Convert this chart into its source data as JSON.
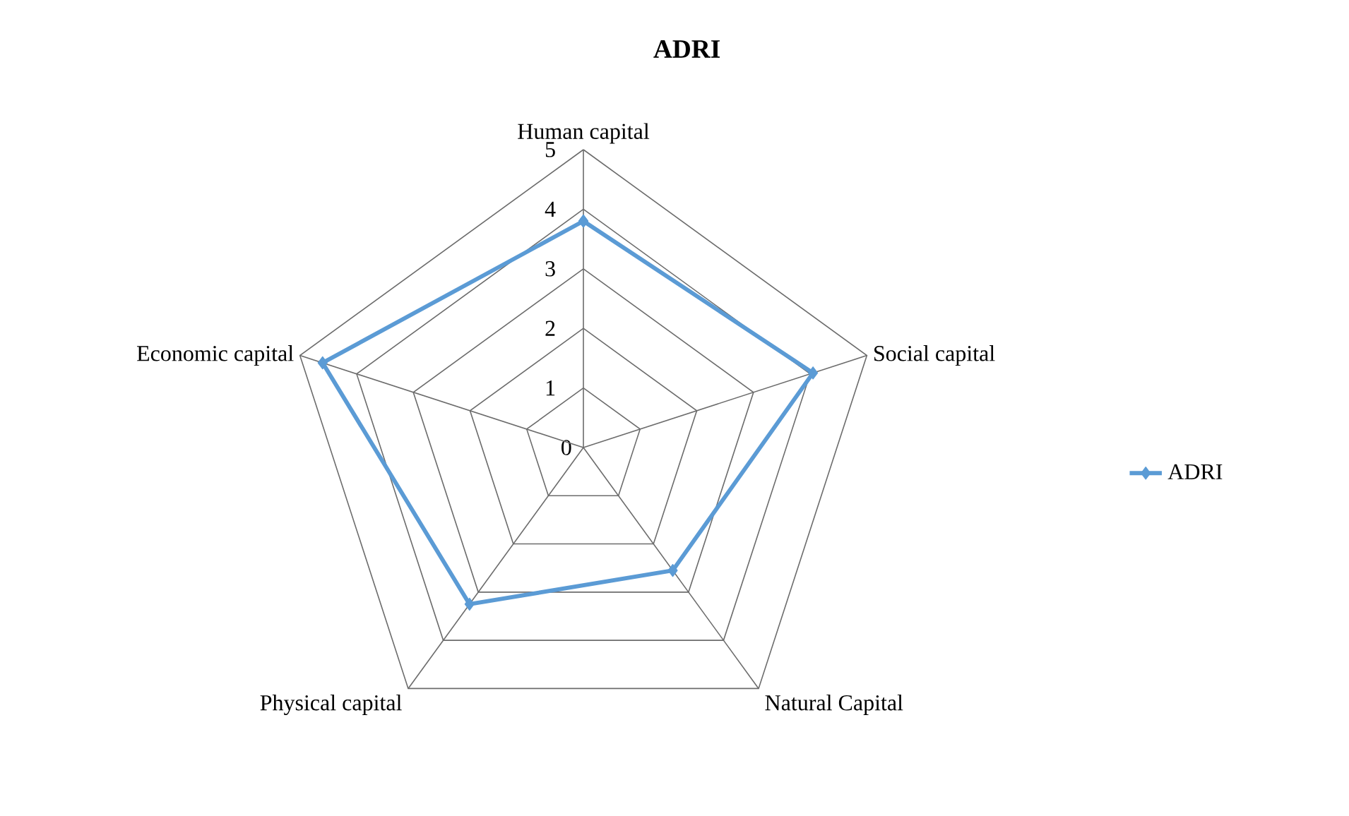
{
  "chart_data": {
    "type": "radar",
    "title": "ADRI",
    "categories": [
      "Human capital",
      "Social capital",
      "Natural Capital",
      "Physical capital",
      "Economic capital"
    ],
    "series": [
      {
        "name": "ADRI",
        "color": "#5b9bd5",
        "values": [
          3.8,
          4.05,
          2.55,
          3.25,
          4.6
        ]
      }
    ],
    "ylim": [
      0,
      5
    ],
    "yticks": [
      0,
      1,
      2,
      3,
      4,
      5
    ],
    "legend": "right",
    "marker": "diamond"
  }
}
